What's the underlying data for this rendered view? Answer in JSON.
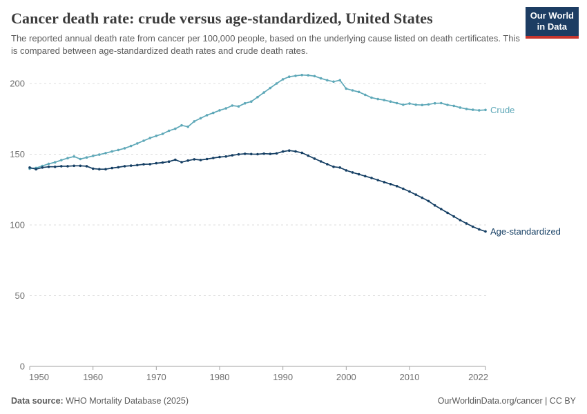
{
  "header": {
    "title": "Cancer death rate: crude versus age-standardized, United States",
    "subtitle": "The reported annual death rate from cancer per 100,000 people, based on the underlying cause listed on death certificates. This is compared between age-standardized death rates and crude death rates.",
    "logo": {
      "line1": "Our World",
      "line2": "in Data"
    }
  },
  "footer": {
    "source_label": "Data source:",
    "source_value": " WHO Mortality Database (2025)",
    "credit": "OurWorldinData.org/cancer | CC BY"
  },
  "chart_data": {
    "type": "line",
    "title": "Cancer death rate: crude versus age-standardized, United States",
    "xlabel": "",
    "ylabel": "",
    "xlim": [
      1950,
      2022
    ],
    "ylim": [
      0,
      200
    ],
    "xticks": [
      1950,
      1960,
      1970,
      1980,
      1990,
      2000,
      2010,
      2022
    ],
    "yticks": [
      0,
      50,
      100,
      150,
      200
    ],
    "grid": "horizontal-dashed",
    "legend_position": "end-of-line-labels",
    "colors": {
      "axis": "#a0a0a0",
      "gridline": "#dcdcdc",
      "tick_label": "#6e6e6e"
    },
    "x": [
      1950,
      1951,
      1952,
      1953,
      1954,
      1955,
      1956,
      1957,
      1958,
      1959,
      1960,
      1961,
      1962,
      1963,
      1964,
      1965,
      1966,
      1967,
      1968,
      1969,
      1970,
      1971,
      1972,
      1973,
      1974,
      1975,
      1976,
      1977,
      1978,
      1979,
      1980,
      1981,
      1982,
      1983,
      1984,
      1985,
      1986,
      1987,
      1988,
      1989,
      1990,
      1991,
      1992,
      1993,
      1994,
      1995,
      1996,
      1997,
      1998,
      1999,
      2000,
      2001,
      2002,
      2003,
      2004,
      2005,
      2006,
      2007,
      2008,
      2009,
      2010,
      2011,
      2012,
      2013,
      2014,
      2015,
      2016,
      2017,
      2018,
      2019,
      2020,
      2021,
      2022
    ],
    "series": [
      {
        "name": "Crude",
        "color": "#5ea8b8",
        "values": [
          139.8,
          140.3,
          141.7,
          143.2,
          144.3,
          145.8,
          147.2,
          148.4,
          146.6,
          147.7,
          148.8,
          149.7,
          150.8,
          152.0,
          153.0,
          154.2,
          155.8,
          157.6,
          159.5,
          161.4,
          163.0,
          164.4,
          166.6,
          168.0,
          170.4,
          169.4,
          173.2,
          175.4,
          177.6,
          179.2,
          181.0,
          182.4,
          184.4,
          183.8,
          186.0,
          187.2,
          190.4,
          193.6,
          196.8,
          200.0,
          203.0,
          204.8,
          205.4,
          206.0,
          205.8,
          205.2,
          203.6,
          202.3,
          201.3,
          202.3,
          196.4,
          195.1,
          194.0,
          192.0,
          190.0,
          189.0,
          188.3,
          187.2,
          186.1,
          185.0,
          185.8,
          185.0,
          184.8,
          185.2,
          186.0,
          186.1,
          184.9,
          184.2,
          183.0,
          182.0,
          181.4,
          181.0,
          181.3
        ]
      },
      {
        "name": "Age-standardized",
        "color": "#143e63",
        "values": [
          140.6,
          139.4,
          140.6,
          141.1,
          141.1,
          141.5,
          141.5,
          141.8,
          141.8,
          141.5,
          139.8,
          139.4,
          139.4,
          140.2,
          140.8,
          141.5,
          141.9,
          142.3,
          142.9,
          143.0,
          143.6,
          144.1,
          144.8,
          146.1,
          144.4,
          145.5,
          146.4,
          145.9,
          146.6,
          147.3,
          148.0,
          148.4,
          149.2,
          149.9,
          150.3,
          150.1,
          150.0,
          150.4,
          150.2,
          150.6,
          151.9,
          152.6,
          152.0,
          151.0,
          149.0,
          146.9,
          144.9,
          143.0,
          141.1,
          140.6,
          138.6,
          137.1,
          135.8,
          134.5,
          133.2,
          131.7,
          130.3,
          128.9,
          127.4,
          125.6,
          123.6,
          121.4,
          119.2,
          116.9,
          113.8,
          111.2,
          108.6,
          106.0,
          103.4,
          101.0,
          98.8,
          96.9,
          95.4
        ]
      }
    ]
  }
}
